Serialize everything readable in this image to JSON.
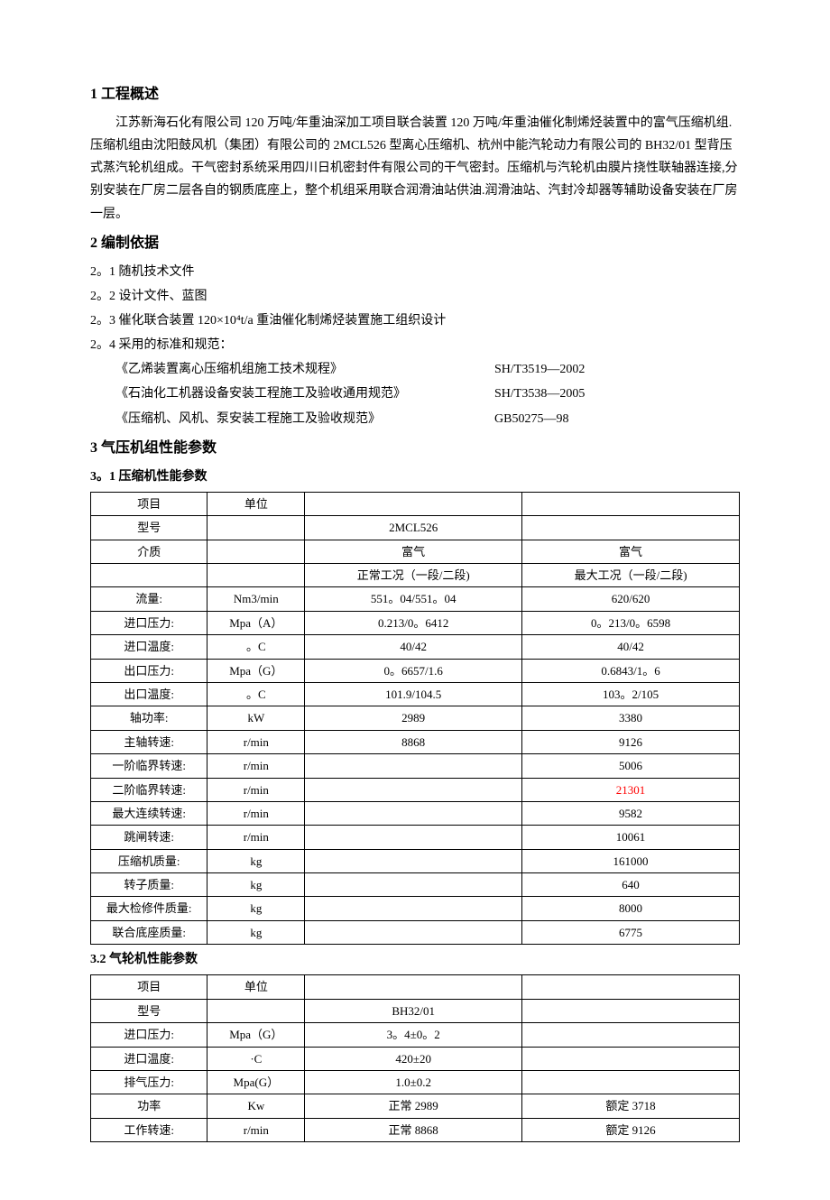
{
  "section1": {
    "title": "1 工程概述",
    "body": "江苏新海石化有限公司 120 万吨/年重油深加工项目联合装置 120 万吨/年重油催化制烯烃装置中的富气压缩机组.压缩机组由沈阳鼓风机（集团）有限公司的 2MCL526 型离心压缩机、杭州中能汽轮动力有限公司的 BH32/01 型背压式蒸汽轮机组成。干气密封系统采用四川日机密封件有限公司的干气密封。压缩机与汽轮机由膜片挠性联轴器连接,分别安装在厂房二层各自的钢质底座上，整个机组采用联合润滑油站供油.润滑油站、汽封冷却器等辅助设备安装在厂房一层。"
  },
  "section2": {
    "title": "2 编制依据",
    "items": [
      "2。1 随机技术文件",
      "2。2 设计文件、蓝图",
      "2。3 催化联合装置 120×10⁴t/a 重油催化制烯烃装置施工组织设计",
      "2。4 采用的标准和规范："
    ],
    "standards": [
      {
        "name": "《乙烯装置离心压缩机组施工技术规程》",
        "code": "SH/T3519—2002"
      },
      {
        "name": "《石油化工机器设备安装工程施工及验收通用规范》",
        "code": "SH/T3538—2005"
      },
      {
        "name": "《压缩机、风机、泵安装工程施工及验收规范》",
        "code": "GB50275—98"
      }
    ]
  },
  "section3": {
    "title": "3 气压机组性能参数",
    "sub31": {
      "title": "3。1 压缩机性能参数",
      "headers": [
        "项目",
        "单位",
        "",
        ""
      ],
      "rows": [
        [
          "型号",
          "",
          "2MCL526",
          ""
        ],
        [
          "介质",
          "",
          "富气",
          "富气"
        ],
        [
          "",
          "",
          "正常工况（一段/二段)",
          "最大工况（一段/二段)"
        ],
        [
          "流量:",
          "Nm3/min",
          "551。04/551。04",
          "620/620"
        ],
        [
          "进口压力:",
          "Mpa（A）",
          "0.213/0。6412",
          "0。213/0。6598"
        ],
        [
          "进口温度:",
          "。C",
          "40/42",
          "40/42"
        ],
        [
          "出口压力:",
          "Mpa（G）",
          "0。6657/1.6",
          "0.6843/1。6"
        ],
        [
          "出口温度:",
          "。C",
          "101.9/104.5",
          "103。2/105"
        ],
        [
          "轴功率:",
          "kW",
          "2989",
          "3380"
        ],
        [
          "主轴转速:",
          "r/min",
          "8868",
          "9126"
        ],
        [
          "一阶临界转速:",
          "r/min",
          "",
          "5006"
        ],
        [
          "二阶临界转速:",
          "r/min",
          "",
          "21301"
        ],
        [
          "最大连续转速:",
          "r/min",
          "",
          "9582"
        ],
        [
          "跳闸转速:",
          "r/min",
          "",
          "10061"
        ],
        [
          "压缩机质量:",
          "kg",
          "",
          "161000"
        ],
        [
          "转子质量:",
          "kg",
          "",
          "640"
        ],
        [
          "最大检修件质量:",
          "kg",
          "",
          "8000"
        ],
        [
          "联合底座质量:",
          "kg",
          "",
          "6775"
        ]
      ],
      "redCellRowIndex": 11,
      "redCellColIndex": 3
    },
    "sub32": {
      "title": "3.2 气轮机性能参数",
      "headers": [
        "项目",
        "单位",
        "",
        ""
      ],
      "rows": [
        [
          "型号",
          "",
          "BH32/01",
          ""
        ],
        [
          "进口压力:",
          "Mpa（G）",
          "3。4±0。2",
          ""
        ],
        [
          "进口温度:",
          "·C",
          "420±20",
          ""
        ],
        [
          "排气压力:",
          "Mpa(G）",
          "1.0±0.2",
          ""
        ],
        [
          "功率",
          "Kw",
          "正常 2989",
          "额定 3718"
        ],
        [
          "工作转速:",
          "r/min",
          "正常 8868",
          "额定 9126"
        ]
      ]
    }
  }
}
